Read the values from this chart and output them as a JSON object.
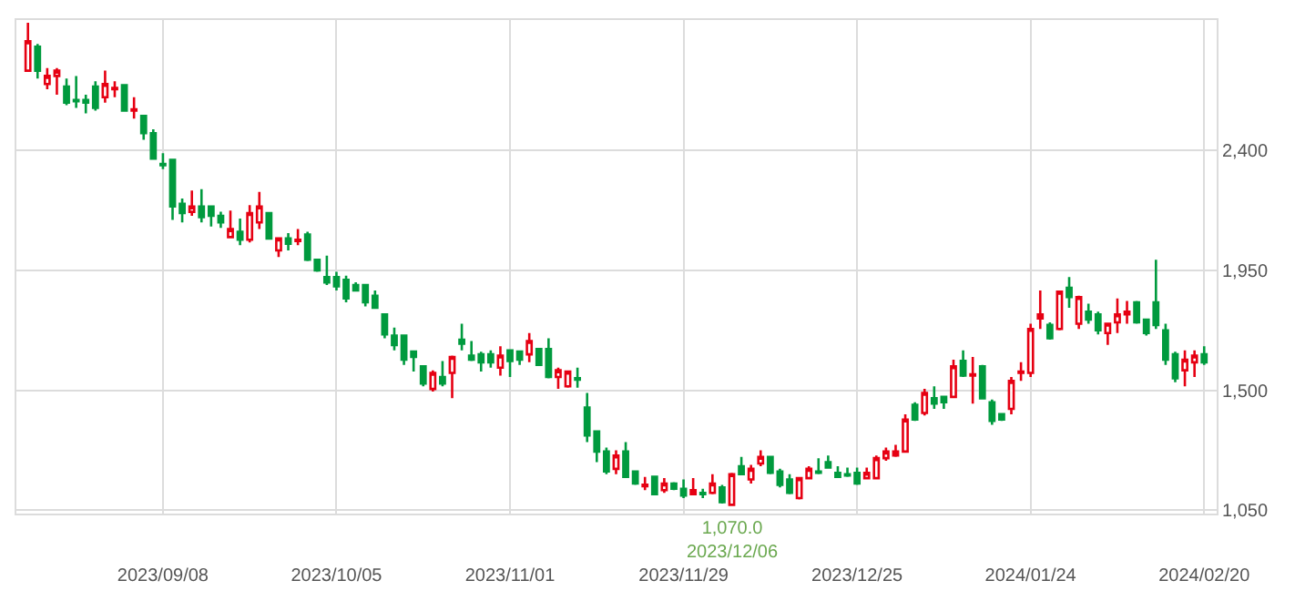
{
  "chart_data": {
    "type": "candlestick",
    "categories": [
      null,
      null,
      null,
      null,
      null,
      null,
      null,
      null,
      null,
      null,
      null,
      null,
      null,
      null,
      "2023/09/08",
      null,
      null,
      null,
      null,
      null,
      null,
      null,
      null,
      null,
      null,
      null,
      null,
      null,
      null,
      null,
      null,
      null,
      "2023/10/05",
      null,
      null,
      null,
      null,
      null,
      null,
      null,
      null,
      null,
      null,
      null,
      null,
      null,
      null,
      null,
      null,
      null,
      "2023/11/01",
      null,
      null,
      null,
      null,
      null,
      null,
      null,
      null,
      null,
      null,
      null,
      null,
      null,
      null,
      null,
      null,
      null,
      "2023/11/29",
      null,
      null,
      null,
      null,
      null,
      null,
      null,
      null,
      null,
      null,
      null,
      null,
      null,
      null,
      null,
      null,
      null,
      "2023/12/25",
      null,
      null,
      null,
      null,
      null,
      null,
      null,
      null,
      null,
      null,
      null,
      null,
      null,
      null,
      null,
      null,
      null,
      "2024/01/24",
      null,
      null,
      null,
      null,
      null,
      null,
      null,
      null,
      null,
      null,
      null,
      null,
      null,
      null,
      null,
      null,
      null,
      "2024/02/20"
    ],
    "ohlc": [
      [
        2700,
        2880,
        2700,
        2810
      ],
      [
        2790,
        2800,
        2670,
        2700
      ],
      [
        2650,
        2710,
        2630,
        2680
      ],
      [
        2680,
        2710,
        2610,
        2700
      ],
      [
        2640,
        2670,
        2570,
        2580
      ],
      [
        2590,
        2680,
        2560,
        2585
      ],
      [
        2590,
        2610,
        2540,
        2580
      ],
      [
        2640,
        2660,
        2550,
        2560
      ],
      [
        2600,
        2700,
        2580,
        2650
      ],
      [
        2630,
        2660,
        2600,
        2635
      ],
      [
        2645,
        2650,
        2550,
        2550
      ],
      [
        2550,
        2600,
        2520,
        2555
      ],
      [
        2530,
        2530,
        2440,
        2465
      ],
      [
        2465,
        2480,
        2370,
        2370
      ],
      [
        2350,
        2390,
        2330,
        2345
      ],
      [
        2365,
        2365,
        2140,
        2190
      ],
      [
        2200,
        2220,
        2130,
        2165
      ],
      [
        2170,
        2250,
        2155,
        2190
      ],
      [
        2190,
        2255,
        2130,
        2150
      ],
      [
        2190,
        2190,
        2115,
        2155
      ],
      [
        2155,
        2170,
        2110,
        2130
      ],
      [
        2075,
        2175,
        2070,
        2105
      ],
      [
        2095,
        2145,
        2045,
        2065
      ],
      [
        2065,
        2195,
        2055,
        2165
      ],
      [
        2130,
        2245,
        2105,
        2190
      ],
      [
        2165,
        2165,
        2070,
        2070
      ],
      [
        2025,
        2070,
        2000,
        2070
      ],
      [
        2070,
        2090,
        2025,
        2050
      ],
      [
        2060,
        2105,
        2045,
        2065
      ],
      [
        2085,
        2095,
        1985,
        1990
      ],
      [
        1990,
        1990,
        1945,
        1950
      ],
      [
        1925,
        2005,
        1895,
        1905
      ],
      [
        1925,
        1945,
        1875,
        1890
      ],
      [
        1915,
        1930,
        1830,
        1845
      ],
      [
        1895,
        1905,
        1870,
        1875
      ],
      [
        1895,
        1895,
        1815,
        1830
      ],
      [
        1855,
        1875,
        1810,
        1810
      ],
      [
        1785,
        1785,
        1695,
        1710
      ],
      [
        1705,
        1735,
        1650,
        1670
      ],
      [
        1705,
        1705,
        1595,
        1615
      ],
      [
        1645,
        1650,
        1570,
        1625
      ],
      [
        1590,
        1590,
        1515,
        1525
      ],
      [
        1505,
        1575,
        1495,
        1565
      ],
      [
        1550,
        1610,
        1515,
        1525
      ],
      [
        1565,
        1630,
        1470,
        1625
      ],
      [
        1690,
        1750,
        1650,
        1675
      ],
      [
        1630,
        1685,
        1610,
        1615
      ],
      [
        1635,
        1645,
        1570,
        1605
      ],
      [
        1635,
        1650,
        1585,
        1605
      ],
      [
        1585,
        1665,
        1555,
        1630
      ],
      [
        1650,
        1650,
        1550,
        1610
      ],
      [
        1645,
        1650,
        1595,
        1615
      ],
      [
        1635,
        1715,
        1605,
        1685
      ],
      [
        1655,
        1655,
        1595,
        1595
      ],
      [
        1655,
        1695,
        1545,
        1550
      ],
      [
        1550,
        1585,
        1505,
        1575
      ],
      [
        1515,
        1575,
        1510,
        1570
      ],
      [
        1545,
        1585,
        1510,
        1540
      ],
      [
        1435,
        1490,
        1305,
        1330
      ],
      [
        1345,
        1350,
        1230,
        1270
      ],
      [
        1270,
        1285,
        1185,
        1195
      ],
      [
        1205,
        1275,
        1185,
        1255
      ],
      [
        1270,
        1305,
        1175,
        1175
      ],
      [
        1195,
        1195,
        1145,
        1150
      ],
      [
        1140,
        1175,
        1125,
        1145
      ],
      [
        1175,
        1175,
        1105,
        1110
      ],
      [
        1125,
        1170,
        1115,
        1150
      ],
      [
        1150,
        1155,
        1125,
        1130
      ],
      [
        1130,
        1165,
        1095,
        1105
      ],
      [
        1110,
        1170,
        1105,
        1125
      ],
      [
        1115,
        1130,
        1095,
        1110
      ],
      [
        1115,
        1185,
        1110,
        1150
      ],
      [
        1135,
        1145,
        1075,
        1080
      ],
      [
        1070,
        1190,
        1070,
        1185
      ],
      [
        1215,
        1250,
        1185,
        1185
      ],
      [
        1165,
        1220,
        1150,
        1205
      ],
      [
        1225,
        1275,
        1215,
        1250
      ],
      [
        1250,
        1250,
        1185,
        1190
      ],
      [
        1195,
        1205,
        1135,
        1145
      ],
      [
        1165,
        1185,
        1110,
        1115
      ],
      [
        1095,
        1175,
        1090,
        1170
      ],
      [
        1170,
        1215,
        1165,
        1205
      ],
      [
        1195,
        1245,
        1185,
        1190
      ],
      [
        1230,
        1255,
        1210,
        1210
      ],
      [
        1190,
        1215,
        1170,
        1175
      ],
      [
        1185,
        1210,
        1175,
        1180
      ],
      [
        1190,
        1210,
        1145,
        1150
      ],
      [
        1170,
        1210,
        1165,
        1190
      ],
      [
        1170,
        1255,
        1165,
        1245
      ],
      [
        1245,
        1285,
        1235,
        1270
      ],
      [
        1255,
        1295,
        1250,
        1270
      ],
      [
        1270,
        1410,
        1265,
        1390
      ],
      [
        1445,
        1455,
        1385,
        1390
      ],
      [
        1415,
        1505,
        1405,
        1490
      ],
      [
        1470,
        1515,
        1430,
        1450
      ],
      [
        1475,
        1475,
        1430,
        1455
      ],
      [
        1475,
        1615,
        1470,
        1590
      ],
      [
        1610,
        1650,
        1550,
        1555
      ],
      [
        1555,
        1625,
        1450,
        1560
      ],
      [
        1590,
        1595,
        1465,
        1470
      ],
      [
        1455,
        1465,
        1370,
        1385
      ],
      [
        1410,
        1415,
        1385,
        1390
      ],
      [
        1430,
        1550,
        1410,
        1535
      ],
      [
        1565,
        1605,
        1535,
        1570
      ],
      [
        1565,
        1750,
        1550,
        1730
      ],
      [
        1770,
        1875,
        1730,
        1785
      ],
      [
        1745,
        1755,
        1690,
        1695
      ],
      [
        1730,
        1875,
        1725,
        1870
      ],
      [
        1885,
        1925,
        1810,
        1850
      ],
      [
        1750,
        1855,
        1730,
        1850
      ],
      [
        1795,
        1825,
        1750,
        1765
      ],
      [
        1785,
        1795,
        1710,
        1725
      ],
      [
        1715,
        1750,
        1670,
        1750
      ],
      [
        1755,
        1845,
        1715,
        1785
      ],
      [
        1785,
        1835,
        1750,
        1795
      ],
      [
        1830,
        1835,
        1750,
        1755
      ],
      [
        1765,
        1765,
        1705,
        1715
      ],
      [
        1830,
        1990,
        1730,
        1745
      ],
      [
        1725,
        1750,
        1595,
        1615
      ],
      [
        1635,
        1645,
        1530,
        1545
      ],
      [
        1575,
        1650,
        1515,
        1615
      ],
      [
        1605,
        1650,
        1550,
        1630
      ],
      [
        1635,
        1665,
        1595,
        1605
      ]
    ],
    "ylim": [
      1037,
      2890
    ],
    "yticks": [
      {
        "value": 1050,
        "label": "1,050"
      },
      {
        "value": 1500,
        "label": "1,500"
      },
      {
        "value": 1950,
        "label": "1,950"
      },
      {
        "value": 2400,
        "label": "2,400"
      }
    ],
    "grid": true,
    "annotations": [
      {
        "text": "1,070.0\n2023/12/06",
        "y": 1070
      }
    ]
  }
}
